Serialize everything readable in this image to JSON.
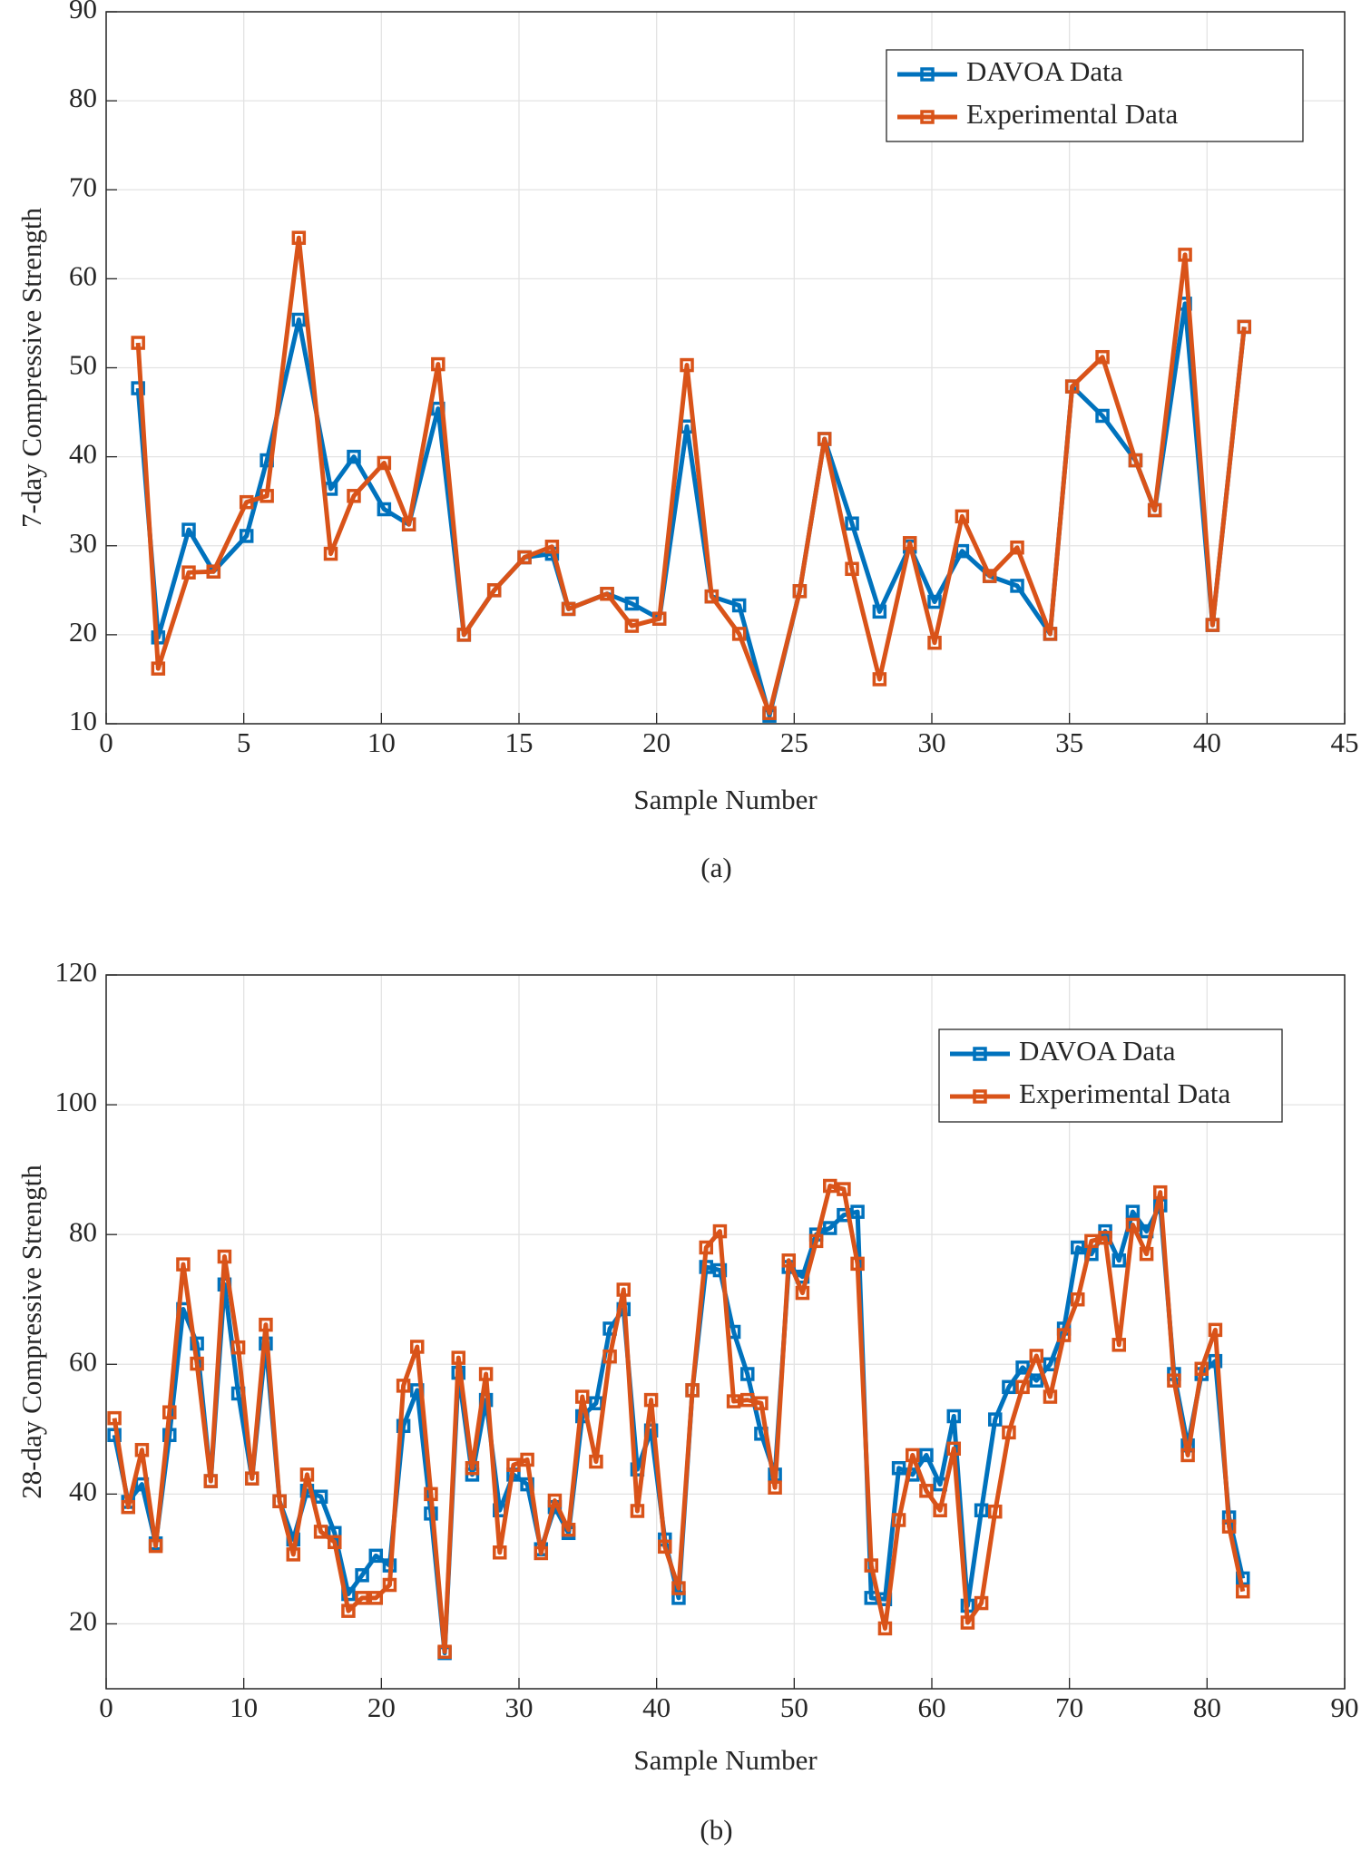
{
  "chart_data": [
    {
      "type": "line",
      "caption": "(a)",
      "x_label": "Sample Number",
      "y_label": "7-day Compressive Strength",
      "x": [
        1.16,
        1.89,
        3.0,
        3.9,
        5.1,
        5.84,
        7.0,
        8.16,
        9.0,
        10.1,
        11.0,
        12.06,
        13.0,
        14.1,
        15.2,
        16.2,
        16.8,
        18.2,
        19.1,
        20.1,
        21.1,
        22.0,
        23.0,
        24.1,
        25.2,
        26.1,
        27.1,
        28.1,
        29.2,
        30.1,
        31.1,
        32.1,
        33.1,
        34.3,
        35.1,
        36.2,
        37.4,
        38.1,
        39.2,
        40.2,
        41.35
      ],
      "series": [
        {
          "name": "DAVOA Data",
          "color": "#0072BD",
          "values": [
            47.7,
            19.7,
            31.8,
            27.1,
            31.1,
            39.6,
            55.4,
            36.4,
            40.0,
            34.1,
            32.4,
            45.4,
            20.0,
            25.0,
            28.7,
            29.1,
            22.9,
            24.6,
            23.5,
            21.8,
            43.4,
            24.3,
            23.3,
            10.9,
            24.9,
            42.0,
            32.5,
            22.6,
            29.9,
            23.7,
            29.4,
            26.6,
            25.5,
            20.1,
            47.9,
            44.6,
            39.6,
            34.0,
            57.2,
            21.1,
            54.6
          ]
        },
        {
          "name": "Experimental Data",
          "color": "#D95319",
          "values": [
            52.8,
            16.2,
            27.0,
            27.1,
            34.9,
            35.6,
            64.6,
            29.1,
            35.6,
            39.3,
            32.4,
            50.4,
            20.0,
            25.0,
            28.7,
            29.9,
            22.9,
            24.6,
            21.0,
            21.8,
            50.3,
            24.3,
            20.1,
            11.2,
            24.9,
            42.0,
            27.4,
            15.0,
            30.3,
            19.1,
            33.3,
            26.6,
            29.8,
            20.1,
            47.9,
            51.2,
            39.6,
            34.0,
            62.7,
            21.1,
            54.6
          ]
        }
      ],
      "xlim": [
        0,
        45
      ],
      "ylim": [
        10,
        90
      ],
      "xticks": [
        0,
        5,
        10,
        15,
        20,
        25,
        30,
        35,
        40,
        45
      ],
      "yticks": [
        10,
        20,
        30,
        40,
        50,
        60,
        70,
        80,
        90
      ],
      "grid": true,
      "legend": "upper right"
    },
    {
      "type": "line",
      "caption": "(b)",
      "x_label": "Sample Number",
      "y_label": "28-day Compressive Strength",
      "x": [
        0.6,
        1.6,
        2.6,
        3.6,
        4.6,
        5.6,
        6.6,
        7.6,
        8.6,
        9.6,
        10.6,
        11.6,
        12.6,
        13.6,
        14.6,
        15.6,
        16.6,
        17.6,
        18.6,
        19.6,
        20.6,
        21.6,
        22.6,
        23.6,
        24.6,
        25.6,
        26.6,
        27.6,
        28.6,
        29.6,
        30.6,
        31.6,
        32.6,
        33.6,
        34.6,
        35.6,
        36.6,
        37.6,
        38.6,
        39.6,
        40.6,
        41.6,
        42.6,
        43.6,
        44.6,
        45.6,
        46.6,
        47.6,
        48.6,
        49.6,
        50.6,
        51.6,
        52.6,
        53.6,
        54.6,
        55.6,
        56.6,
        57.6,
        58.6,
        59.6,
        60.6,
        61.6,
        62.6,
        63.6,
        64.6,
        65.6,
        66.6,
        67.6,
        68.6,
        69.6,
        70.6,
        71.6,
        72.6,
        73.6,
        74.6,
        75.6,
        76.6,
        77.6,
        78.6,
        79.6,
        80.6,
        81.6,
        82.6
      ],
      "series": [
        {
          "name": "DAVOA Data",
          "color": "#0072BD",
          "values": [
            49.1,
            38.8,
            41.5,
            32.4,
            49.1,
            68.5,
            63.2,
            42.0,
            72.3,
            55.5,
            42.4,
            63.2,
            38.9,
            33.0,
            40.5,
            39.6,
            34.0,
            24.6,
            27.5,
            30.5,
            29.0,
            50.5,
            56.0,
            37.0,
            15.5,
            58.7,
            43.0,
            54.5,
            37.5,
            43.0,
            41.5,
            31.5,
            38.0,
            34.0,
            52.0,
            54.0,
            65.5,
            68.5,
            43.8,
            49.8,
            33.0,
            24.0,
            56.0,
            75.0,
            74.5,
            65.0,
            58.5,
            49.3,
            43.0,
            75.0,
            73.5,
            80.0,
            81.0,
            83.0,
            83.5,
            24.0,
            23.8,
            44.0,
            43.0,
            46.0,
            41.5,
            52.0,
            22.8,
            37.5,
            51.5,
            56.5,
            59.5,
            57.5,
            60.0,
            65.5,
            78.0,
            77.0,
            80.5,
            76.0,
            83.5,
            80.5,
            84.5,
            58.5,
            47.5,
            58.5,
            60.5,
            36.4,
            27.0
          ]
        },
        {
          "name": "Experimental Data",
          "color": "#D95319",
          "values": [
            51.7,
            38.0,
            46.8,
            32.0,
            52.6,
            75.4,
            60.1,
            42.0,
            76.6,
            62.6,
            42.4,
            66.1,
            38.9,
            30.7,
            43.0,
            34.2,
            32.6,
            22.0,
            24.0,
            24.0,
            26.0,
            56.7,
            62.7,
            40.0,
            15.7,
            61.0,
            44.0,
            58.5,
            31.0,
            44.5,
            45.3,
            30.9,
            39.0,
            34.5,
            55.0,
            45.0,
            61.2,
            71.5,
            37.4,
            54.5,
            31.9,
            25.5,
            56.0,
            78.0,
            80.5,
            54.3,
            54.5,
            54.0,
            41.0,
            76.0,
            71.0,
            79.0,
            87.5,
            87.0,
            75.5,
            29.0,
            19.3,
            36.0,
            46.0,
            40.5,
            37.5,
            47.0,
            20.2,
            23.2,
            37.3,
            49.5,
            56.5,
            61.3,
            55.0,
            64.5,
            70.0,
            79.0,
            79.5,
            63.0,
            81.5,
            77.0,
            86.5,
            57.5,
            46.0,
            59.3,
            65.3,
            35.0,
            25.0
          ]
        }
      ],
      "xlim": [
        0,
        90
      ],
      "ylim": [
        10,
        120
      ],
      "xticks": [
        0,
        10,
        20,
        30,
        40,
        50,
        60,
        70,
        80,
        90
      ],
      "yticks": [
        20,
        40,
        60,
        80,
        100,
        120
      ],
      "grid": true,
      "legend": "upper right"
    }
  ]
}
